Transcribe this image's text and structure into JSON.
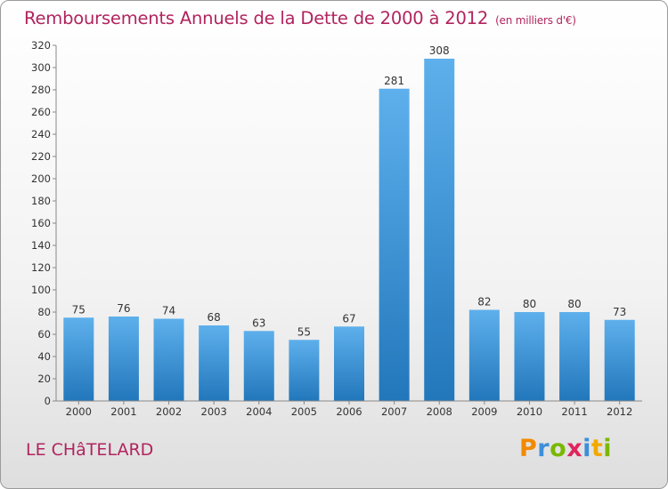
{
  "title": "Remboursements Annuels de la Dette de 2000 à 2012",
  "title_unit": "(en milliers d'€)",
  "commune": "LE CHâTELARD",
  "logo": {
    "letters": [
      "P",
      "r",
      "o",
      "x",
      "i",
      "t",
      "i"
    ],
    "colors": [
      "#f28a00",
      "#3d8fd8",
      "#7ab800",
      "#e0245e",
      "#3d8fd8",
      "#f2a900",
      "#7ab800"
    ]
  },
  "colors": {
    "bar_top": "#5eb0ec",
    "bar_bottom": "#2277bb",
    "text": "#b1245e"
  },
  "chart_data": {
    "type": "bar",
    "title": "Remboursements Annuels de la Dette de 2000 à 2012",
    "categories": [
      "2000",
      "2001",
      "2002",
      "2003",
      "2004",
      "2005",
      "2006",
      "2007",
      "2008",
      "2009",
      "2010",
      "2011",
      "2012"
    ],
    "values": [
      75,
      76,
      74,
      68,
      63,
      55,
      67,
      281,
      308,
      82,
      80,
      80,
      73
    ],
    "ylim": [
      0,
      320
    ],
    "ytick_step": 20,
    "grid": false,
    "legend": "none"
  }
}
